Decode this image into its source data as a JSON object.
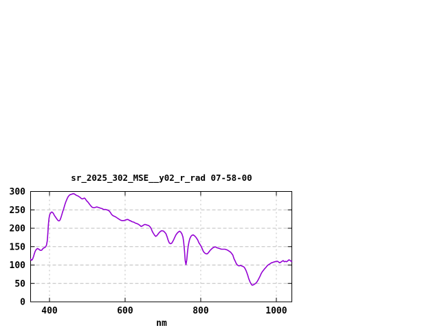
{
  "chart": {
    "title": "sr_2025_302_MSE__y02_r_rad 07-58-00",
    "colors": {
      "line": "#9400d3",
      "grid": "#bdbdbd",
      "border": "#000000",
      "background": "#ffffff",
      "text": "#000000"
    }
  },
  "chart_data": {
    "type": "line",
    "title": "sr_2025_302_MSE__y02_r_rad 07-58-00",
    "xlabel": "nm",
    "ylabel": "",
    "xlim": [
      350,
      1041
    ],
    "ylim": [
      0,
      300
    ],
    "xticks": [
      400,
      600,
      800,
      1000
    ],
    "yticks": [
      0,
      50,
      100,
      150,
      200,
      250,
      300
    ],
    "grid": true,
    "legend": "none",
    "series": [
      {
        "name": "sr_2025_302_MSE__y02_r_rad",
        "color": "#9400d3",
        "x": [
          350,
          352,
          354,
          356,
          358,
          360,
          362,
          364,
          366,
          368,
          370,
          372,
          374,
          376,
          378,
          380,
          382,
          384,
          386,
          388,
          390,
          392,
          394,
          395,
          396,
          397,
          398,
          399,
          400,
          401,
          403,
          405,
          407,
          409,
          411,
          413,
          415,
          417,
          419,
          421,
          423,
          425,
          427,
          429,
          431,
          433,
          435,
          437,
          439,
          441,
          443,
          445,
          447,
          449,
          451,
          454,
          457,
          460,
          463,
          466,
          469,
          472,
          475,
          478,
          481,
          484,
          486,
          488,
          490,
          492,
          494,
          496,
          498,
          501,
          504,
          507,
          510,
          513,
          516,
          519,
          522,
          525,
          528,
          531,
          534,
          537,
          540,
          543,
          546,
          549,
          552,
          555,
          558,
          561,
          564,
          567,
          570,
          573,
          576,
          579,
          582,
          585,
          588,
          591,
          594,
          597,
          600,
          603,
          606,
          609,
          612,
          615,
          618,
          621,
          624,
          627,
          630,
          633,
          636,
          639,
          642,
          645,
          648,
          651,
          654,
          657,
          660,
          663,
          666,
          669,
          672,
          675,
          678,
          681,
          684,
          687,
          690,
          693,
          696,
          699,
          702,
          705,
          708,
          711,
          714,
          717,
          720,
          723,
          726,
          729,
          732,
          735,
          738,
          741,
          744,
          747,
          750,
          753,
          755,
          757,
          759,
          761,
          763,
          765,
          767,
          769,
          771,
          774,
          777,
          780,
          783,
          786,
          789,
          792,
          795,
          798,
          801,
          804,
          807,
          810,
          813,
          816,
          819,
          822,
          825,
          828,
          831,
          834,
          837,
          840,
          843,
          846,
          849,
          852,
          855,
          858,
          861,
          864,
          867,
          870,
          873,
          876,
          879,
          882,
          885,
          888,
          891,
          894,
          897,
          900,
          903,
          906,
          909,
          912,
          915,
          918,
          921,
          924,
          927,
          930,
          933,
          936,
          939,
          942,
          945,
          948,
          951,
          954,
          957,
          960,
          963,
          966,
          969,
          972,
          975,
          978,
          981,
          984,
          987,
          990,
          993,
          996,
          1000,
          1003,
          1006,
          1009,
          1012,
          1015,
          1018,
          1021,
          1024,
          1027,
          1030,
          1033,
          1036,
          1039,
          1041
        ],
        "y": [
          116,
          113,
          114,
          118,
          124,
          131,
          137,
          141,
          143,
          145,
          144,
          143,
          141,
          140,
          140,
          141,
          144,
          146,
          147,
          148,
          150,
          154,
          165,
          176,
          192,
          208,
          220,
          228,
          234,
          238,
          241,
          244,
          244,
          242,
          239,
          235,
          232,
          229,
          226,
          223,
          221,
          220,
          221,
          225,
          231,
          238,
          245,
          251,
          258,
          265,
          271,
          276,
          281,
          285,
          288,
          291,
          292,
          293,
          294,
          293,
          291,
          289,
          288,
          286,
          284,
          281,
          280,
          280,
          281,
          282,
          281,
          278,
          275,
          272,
          268,
          264,
          260,
          257,
          256,
          256,
          257,
          258,
          257,
          256,
          255,
          254,
          253,
          251,
          251,
          251,
          250,
          249,
          247,
          243,
          238,
          235,
          233,
          232,
          230,
          228,
          226,
          224,
          222,
          221,
          221,
          221,
          222,
          223,
          224,
          223,
          221,
          220,
          218,
          217,
          216,
          214,
          213,
          212,
          210,
          208,
          205,
          206,
          208,
          210,
          210,
          209,
          208,
          207,
          204,
          199,
          191,
          186,
          181,
          178,
          180,
          184,
          188,
          191,
          193,
          193,
          192,
          189,
          185,
          177,
          167,
          160,
          158,
          159,
          164,
          170,
          177,
          183,
          187,
          190,
          192,
          190,
          185,
          176,
          162,
          140,
          112,
          101,
          113,
          135,
          152,
          163,
          171,
          178,
          181,
          182,
          180,
          177,
          173,
          168,
          161,
          156,
          151,
          144,
          137,
          133,
          131,
          130,
          132,
          136,
          140,
          143,
          146,
          148,
          149,
          149,
          147,
          146,
          145,
          144,
          143,
          143,
          143,
          143,
          142,
          141,
          139,
          137,
          135,
          131,
          127,
          117,
          111,
          104,
          100,
          98,
          98,
          99,
          97,
          96,
          94,
          89,
          82,
          73,
          63,
          55,
          49,
          45,
          46,
          48,
          50,
          53,
          58,
          64,
          70,
          77,
          82,
          86,
          90,
          93,
          97,
          100,
          102,
          104,
          106,
          107,
          108,
          109,
          110,
          110,
          108,
          106,
          108,
          110,
          112,
          109,
          110,
          109,
          111,
          114,
          113,
          110,
          110
        ]
      }
    ]
  }
}
